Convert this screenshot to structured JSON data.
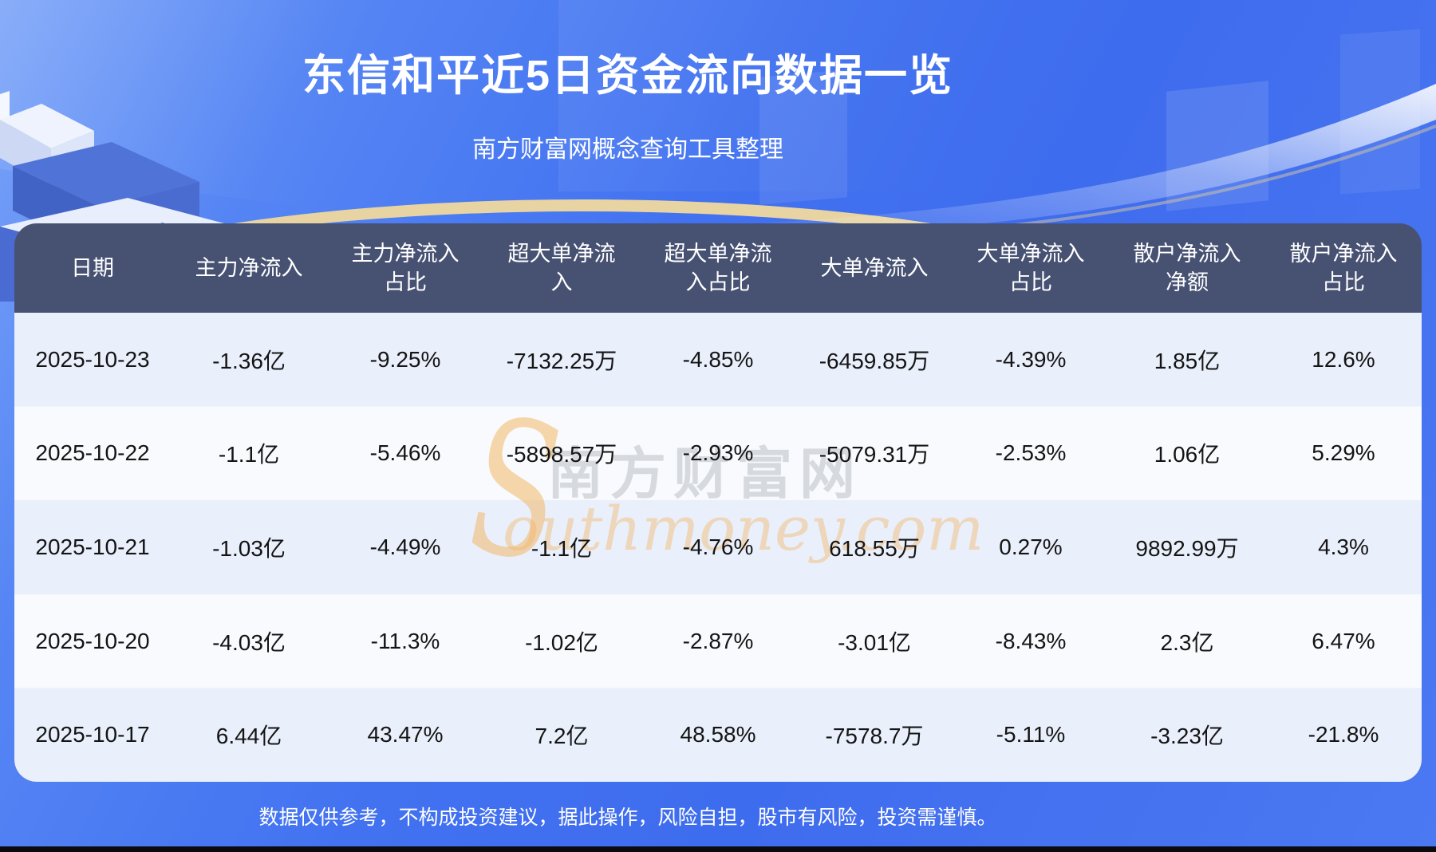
{
  "page": {
    "title": "东信和平近5日资金流向数据一览",
    "subtitle": "南方财富网概念查询工具整理",
    "disclaimer": "数据仅供参考，不构成投资建议，据此操作，风险自担，股市有风险，投资需谨慎。"
  },
  "watermark": {
    "initial": "S",
    "cn": "南方财富网",
    "en": "outhmoney.com"
  },
  "colors": {
    "background_blue": "#3f6ef0",
    "header_bg": "#475273",
    "row_odd": "#e9effb",
    "row_even": "#f8fafd",
    "gold_arc": "#e7d4a2",
    "watermark_orange": "#f0b269",
    "text_dark": "#141414",
    "text_white": "#ffffff"
  },
  "chart_data": {
    "type": "table",
    "title": "东信和平近5日资金流向数据一览",
    "subtitle": "南方财富网概念查询工具整理",
    "columns": [
      "日期",
      "主力净流入",
      "主力净流入占比",
      "超大单净流入",
      "超大单净流入占比",
      "大单净流入",
      "大单净流入占比",
      "散户净流入净额",
      "散户净流入占比"
    ],
    "rows": [
      [
        "2025-10-23",
        "-1.36亿",
        "-9.25%",
        "-7132.25万",
        "-4.85%",
        "-6459.85万",
        "-4.39%",
        "1.85亿",
        "12.6%"
      ],
      [
        "2025-10-22",
        "-1.1亿",
        "-5.46%",
        "-5898.57万",
        "-2.93%",
        "-5079.31万",
        "-2.53%",
        "1.06亿",
        "5.29%"
      ],
      [
        "2025-10-21",
        "-1.03亿",
        "-4.49%",
        "-1.1亿",
        "-4.76%",
        "618.55万",
        "0.27%",
        "9892.99万",
        "4.3%"
      ],
      [
        "2025-10-20",
        "-4.03亿",
        "-11.3%",
        "-1.02亿",
        "-2.87%",
        "-3.01亿",
        "-8.43%",
        "2.3亿",
        "6.47%"
      ],
      [
        "2025-10-17",
        "6.44亿",
        "43.47%",
        "7.2亿",
        "48.58%",
        "-7578.7万",
        "-5.11%",
        "-3.23亿",
        "-21.8%"
      ]
    ]
  }
}
